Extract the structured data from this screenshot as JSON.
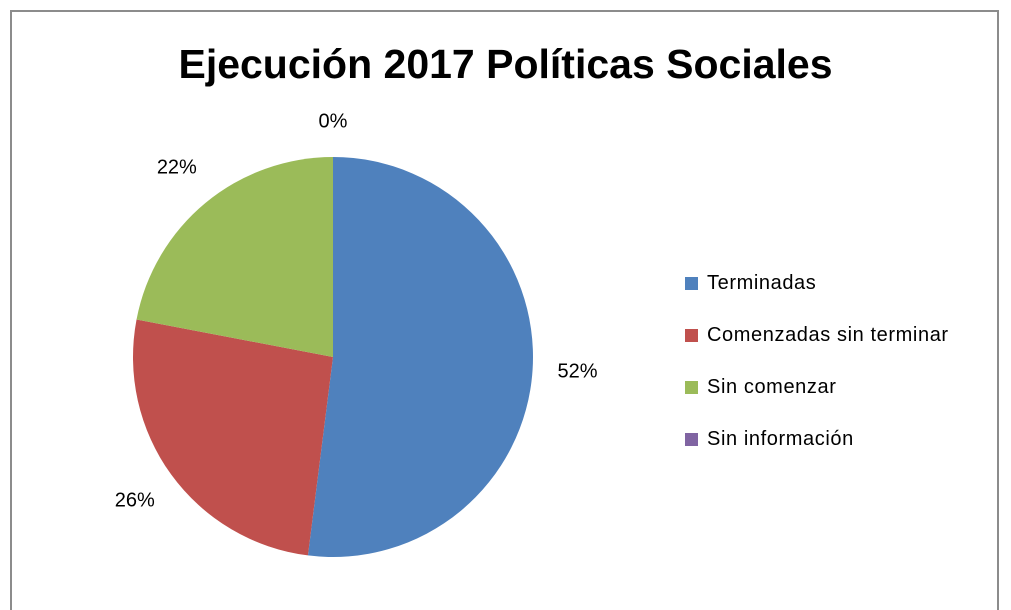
{
  "chart_data": {
    "type": "pie",
    "title": "Ejecución 2017 Políticas Sociales",
    "categories": [
      "Terminadas",
      "Comenzadas sin terminar",
      "Sin comenzar",
      "Sin información"
    ],
    "values": [
      52,
      26,
      22,
      0
    ],
    "data_labels": [
      "52%",
      "26%",
      "22%",
      "0%"
    ],
    "colors": [
      "#4f81bd",
      "#c0504d",
      "#9bbb59",
      "#8064a2"
    ],
    "legend_position": "right",
    "start_angle": "12 o'clock, clockwise"
  }
}
